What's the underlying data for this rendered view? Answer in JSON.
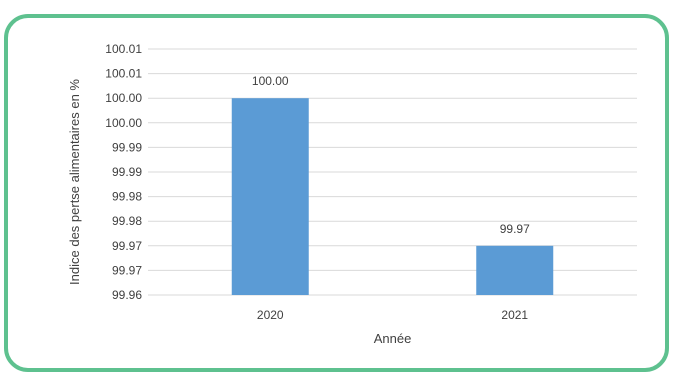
{
  "colors": {
    "border": "#5ec18f",
    "bar": "#5b9bd5",
    "grid": "#d9d9d9",
    "text": "#404040"
  },
  "chart_data": {
    "type": "bar",
    "title": "",
    "xlabel": "Année",
    "ylabel": "Indice des pertse alimentaires en %",
    "categories": [
      "2020",
      "2021"
    ],
    "values": [
      100.0,
      99.97
    ],
    "data_labels": [
      "100.00",
      "99.97"
    ],
    "ylim": [
      99.96,
      100.01
    ],
    "yticks": [
      99.96,
      99.965,
      99.97,
      99.975,
      99.98,
      99.985,
      99.99,
      99.995,
      100.0,
      100.005,
      100.01
    ],
    "ytick_labels": [
      "99.96",
      "99.97",
      "99.97",
      "99.98",
      "99.98",
      "99.99",
      "99.99",
      "100.00",
      "100.00",
      "100.01",
      "100.01"
    ],
    "grid": true,
    "legend": "none"
  }
}
